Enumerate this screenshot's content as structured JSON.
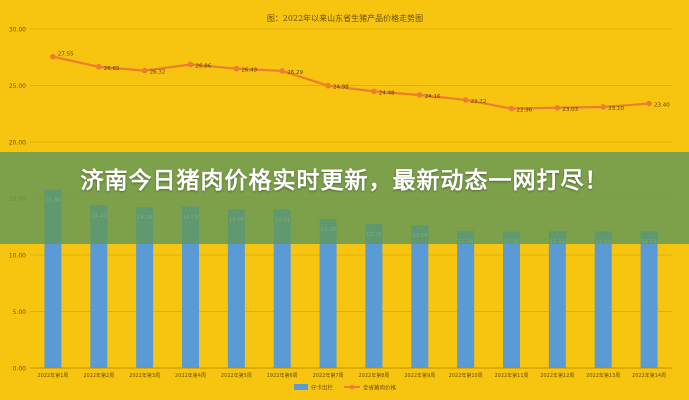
{
  "chart_data": {
    "type": "bar+line",
    "title": "图：2022年以来山东省生猪产品价格走势图",
    "categories": [
      "2022年第1周",
      "2022年第2周",
      "2022年第3周",
      "2022年第4周",
      "2022年第5周",
      "1922年第6周",
      "2022年第7周",
      "2022年第8周",
      "2022年第9周",
      "2022年第10周",
      "2022年第11周",
      "2022年第12周",
      "2022年第13周",
      "2022年第14周"
    ],
    "ylim": [
      0,
      30
    ],
    "yticks": [
      "0.00",
      "5.00",
      "10.00",
      "15.00",
      "20.00",
      "25.00",
      "30.00"
    ],
    "series": [
      {
        "name": "仔卡出栏",
        "type": "bar",
        "color": "#5b9bd5",
        "values": [
          15.8,
          14.4,
          14.26,
          14.29,
          14.06,
          14.04,
          13.2,
          12.75,
          12.66,
          12.14,
          12.08,
          12.12,
          12.1,
          12.12
        ],
        "labels": [
          "15.80",
          "14.40",
          "14.26",
          "14.29",
          "14.06",
          "14.04",
          "13.20",
          "12.75",
          "12.66",
          "12.14",
          "12.08",
          "12.12",
          "12.10",
          "12.12"
        ]
      },
      {
        "name": "全省猪肉价格",
        "type": "line",
        "color": "#ed7d31",
        "values": [
          27.55,
          26.65,
          26.32,
          26.86,
          26.49,
          26.29,
          24.98,
          24.48,
          24.16,
          23.72,
          22.96,
          23.03,
          23.1,
          23.4
        ],
        "labels": [
          "27.55",
          "26.65",
          "26.32",
          "26.86",
          "26.49",
          "26.29",
          "24.98",
          "24.48",
          "24.16",
          "23.72",
          "22.96",
          "23.03",
          "23.10",
          "23.40"
        ]
      }
    ],
    "grid": true,
    "legend": "bottom"
  },
  "overlay": {
    "headline": "济南今日猪肉价格实时更新，最新动态一网打尽！"
  }
}
